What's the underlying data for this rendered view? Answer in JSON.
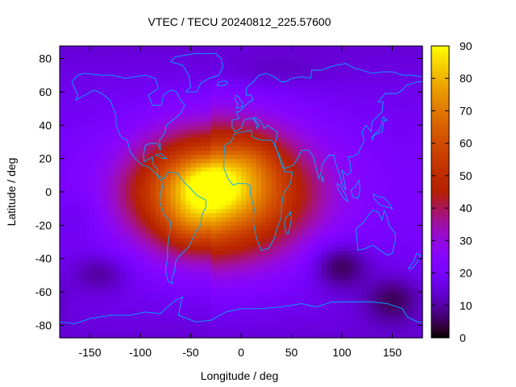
{
  "chart_data": {
    "type": "heatmap",
    "title": "VTEC / TECU 20240812_225.57600",
    "xlabel": "Longitude / deg",
    "ylabel": "Latitude / deg",
    "xlim": [
      -180,
      180
    ],
    "ylim": [
      -87.5,
      87.5
    ],
    "x_ticks": [
      -150,
      -100,
      -50,
      0,
      50,
      100,
      150
    ],
    "y_ticks": [
      -80,
      -60,
      -40,
      -20,
      0,
      20,
      40,
      60,
      80
    ],
    "colorbar": {
      "label": "VTEC / TECU",
      "range": [
        0,
        90
      ],
      "ticks": [
        0,
        10,
        20,
        30,
        40,
        50,
        60,
        70,
        80,
        90
      ],
      "palette": "gnuplot-default (black-purple-red-orange-yellow)"
    },
    "grid": false,
    "overlay": "coastlines",
    "grid_resolution": {
      "lon_step_deg": 5,
      "lat_step_deg": 2.5
    },
    "features": [
      {
        "name": "equatorial anomaly peak",
        "lon": -30,
        "lat": 5,
        "vtec": 88
      },
      {
        "name": "southern crest",
        "lon": -50,
        "lat": -20,
        "vtec": 70
      },
      {
        "name": "northern crest",
        "lon": 10,
        "lat": 20,
        "vtec": 70
      },
      {
        "name": "trough south of Australia",
        "lon": 100,
        "lat": -45,
        "vtec": 3
      },
      {
        "name": "trough near Antarctica",
        "lon": 150,
        "lat": -65,
        "vtec": 3
      }
    ]
  }
}
